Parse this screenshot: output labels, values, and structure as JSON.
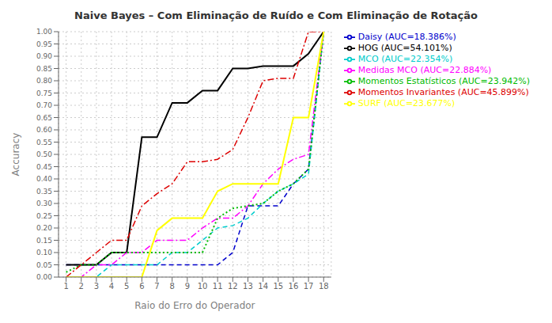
{
  "chart_data": {
    "type": "line",
    "title": "Naive Bayes – Com Eliminação de Ruído e Com Eliminação de Rotação",
    "x_label": "Raio do Erro do Operador",
    "y_label": "Accuracy",
    "xlim": [
      0.5,
      18.5
    ],
    "ylim": [
      0.0,
      1.0
    ],
    "xticks": [
      1,
      2,
      3,
      4,
      5,
      6,
      7,
      8,
      9,
      10,
      11,
      12,
      13,
      14,
      15,
      16,
      17,
      18
    ],
    "yticks": [
      {
        "value": 0.0,
        "label": "0.00"
      },
      {
        "value": 0.05,
        "label": "0.05"
      },
      {
        "value": 0.1,
        "label": "0.10"
      },
      {
        "value": 0.15,
        "label": "0.15"
      },
      {
        "value": 0.2,
        "label": "0.20"
      },
      {
        "value": 0.25,
        "label": "0.25"
      },
      {
        "value": 0.3,
        "label": "0.30"
      },
      {
        "value": 0.35,
        "label": "0.35"
      },
      {
        "value": 0.4,
        "label": "0.40"
      },
      {
        "value": 0.45,
        "label": "0.45"
      },
      {
        "value": 0.5,
        "label": "0.50"
      },
      {
        "value": 0.55,
        "label": "0.55"
      },
      {
        "value": 0.6,
        "label": "0.60"
      },
      {
        "value": 0.65,
        "label": "0.65"
      },
      {
        "value": 0.7,
        "label": "0.70"
      },
      {
        "value": 0.75,
        "label": "0.75"
      },
      {
        "value": 0.8,
        "label": "0.80"
      },
      {
        "value": 0.85,
        "label": "0.85"
      },
      {
        "value": 0.9,
        "label": "0.90"
      },
      {
        "value": 0.95,
        "label": "0.95"
      },
      {
        "value": 1.0,
        "label": "1.00"
      }
    ],
    "grid": true,
    "legend": "right",
    "x": [
      1,
      2,
      3,
      4,
      5,
      6,
      7,
      8,
      9,
      10,
      11,
      12,
      13,
      14,
      15,
      16,
      17,
      18
    ],
    "series": [
      {
        "name": "Daisy (AUC=18.386%)",
        "color": "#0000cc",
        "line_style": "dashed",
        "values": [
          0.05,
          0.05,
          0.05,
          0.05,
          0.05,
          0.05,
          0.05,
          0.05,
          0.05,
          0.05,
          0.05,
          0.1,
          0.29,
          0.29,
          0.29,
          0.38,
          0.44,
          1.0
        ]
      },
      {
        "name": "HOG (AUC=54.101%)",
        "color": "#000000",
        "line_style": "solid",
        "values": [
          0.05,
          0.05,
          0.05,
          0.1,
          0.1,
          0.57,
          0.57,
          0.71,
          0.71,
          0.76,
          0.76,
          0.85,
          0.85,
          0.86,
          0.86,
          0.86,
          0.91,
          1.0
        ]
      },
      {
        "name": "MCO (AUC=22.354%)",
        "color": "#00cccc",
        "line_style": "dashed",
        "values": [
          0.0,
          0.0,
          0.0,
          0.05,
          0.05,
          0.05,
          0.05,
          0.1,
          0.1,
          0.15,
          0.2,
          0.21,
          0.24,
          0.3,
          0.35,
          0.38,
          0.42,
          1.0
        ]
      },
      {
        "name": "Medidas MCO (AUC=22.884%)",
        "color": "#ff00ff",
        "line_style": "dashdot",
        "values": [
          0.0,
          0.0,
          0.05,
          0.05,
          0.1,
          0.1,
          0.15,
          0.15,
          0.15,
          0.2,
          0.24,
          0.24,
          0.29,
          0.38,
          0.44,
          0.48,
          0.5,
          1.0
        ]
      },
      {
        "name": "Momentos Estatísticos (AUC=23.942%)",
        "color": "#00bb00",
        "line_style": "dotted",
        "values": [
          0.02,
          0.05,
          0.05,
          0.1,
          0.1,
          0.1,
          0.1,
          0.1,
          0.1,
          0.1,
          0.24,
          0.28,
          0.29,
          0.3,
          0.35,
          0.38,
          0.44,
          1.0
        ]
      },
      {
        "name": "Momentos Invariantes (AUC=45.899%)",
        "color": "#dd0000",
        "line_style": "dashdot",
        "values": [
          0.0,
          0.05,
          0.1,
          0.15,
          0.15,
          0.29,
          0.34,
          0.38,
          0.47,
          0.47,
          0.48,
          0.52,
          0.65,
          0.8,
          0.81,
          0.81,
          1.0,
          1.0
        ]
      },
      {
        "name": "SURF (AUC=23.677%)",
        "color": "#ffff00",
        "line_style": "solid",
        "values": [
          0.0,
          0.0,
          0.0,
          0.0,
          0.0,
          0.0,
          0.19,
          0.24,
          0.24,
          0.24,
          0.35,
          0.38,
          0.38,
          0.38,
          0.38,
          0.65,
          0.65,
          1.0
        ]
      }
    ]
  }
}
